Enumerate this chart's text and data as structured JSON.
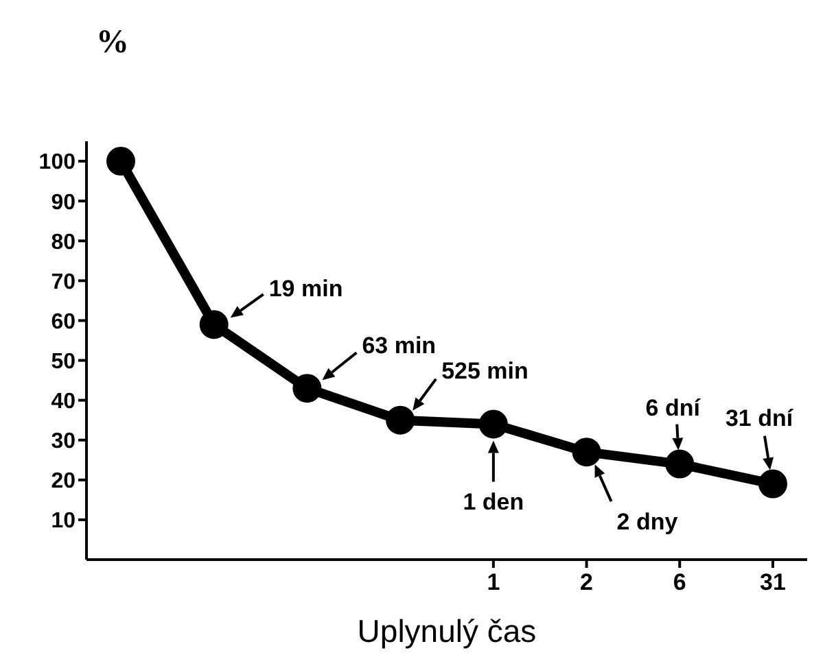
{
  "chart_data": {
    "type": "line",
    "ylabel": "%",
    "xlabel": "Uplynulý čas",
    "categories": [
      null,
      null,
      null,
      null,
      "1",
      "2",
      "6",
      "31"
    ],
    "series": [
      {
        "color": "#000000",
        "values": [
          100,
          59,
          43,
          35,
          34,
          27,
          24,
          19
        ]
      }
    ],
    "ylim": [
      0,
      105
    ],
    "yticks": [
      10,
      20,
      30,
      40,
      50,
      60,
      70,
      80,
      90,
      100
    ],
    "marker": "circle",
    "line_style": "solid",
    "annotations": [
      "19 min",
      "63 min",
      {
        "text": "525 min",
        "y": 35
      },
      {
        "text": "1 den",
        "x": "1",
        "y": 34
      },
      {
        "text": "2 dny",
        "x": "2",
        "y": 27
      },
      {
        "text": "6 dní",
        "x": "6",
        "y": 24
      },
      {
        "text": "31 dní",
        "x": "31",
        "y": 19
      }
    ]
  }
}
